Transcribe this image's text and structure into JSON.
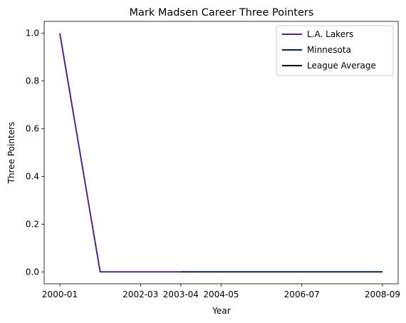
{
  "chart_data": {
    "type": "line",
    "title": "Mark Madsen Career Three Pointers",
    "xlabel": "Year",
    "ylabel": "Three Pointers",
    "x": [
      "2000-01",
      "2001-02",
      "2002-03",
      "2003-04",
      "2004-05",
      "2005-06",
      "2006-07",
      "2007-08",
      "2008-09"
    ],
    "x_tick_labels": [
      "2000-01",
      "2002-03",
      "2003-04",
      "2004-05",
      "2006-07",
      "2008-09"
    ],
    "ylim": [
      -0.05,
      1.05
    ],
    "y_ticks": [
      "0.0",
      "0.2",
      "0.4",
      "0.6",
      "0.8",
      "1.0"
    ],
    "grid": false,
    "legend_position": "top-right",
    "series": [
      {
        "name": "L.A. Lakers",
        "color": "#552583",
        "x": [
          "2000-01",
          "2001-02",
          "2002-03",
          "2003-04"
        ],
        "values": [
          1,
          0,
          0,
          0
        ]
      },
      {
        "name": "Minnesota",
        "color": "#0C2340",
        "x": [
          "2003-04",
          "2004-05",
          "2005-06",
          "2006-07",
          "2007-08",
          "2008-09"
        ],
        "values": [
          0,
          0,
          0,
          0,
          0,
          0
        ]
      },
      {
        "name": "League Average",
        "color": "#000000",
        "x": [],
        "values": []
      }
    ]
  }
}
